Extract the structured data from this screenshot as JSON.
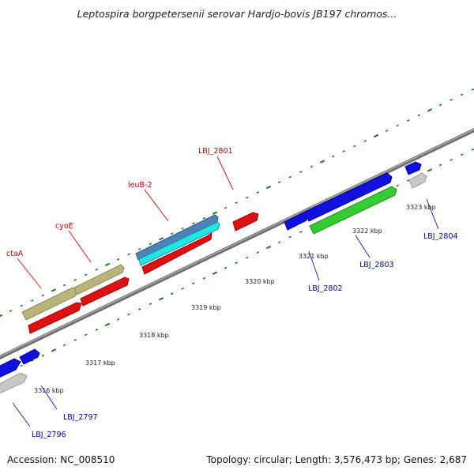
{
  "title": "Leptospira borgpetersenii serovar Hardjo-bovis JB197 chromos...",
  "footer": {
    "accession": "Accession: NC_008510",
    "summary": "Topology: circular; Length: 3,576,473 bp; Genes: 2,687"
  },
  "colors": {
    "backbone": "#8a8a8a",
    "tick": "#1a7a1a",
    "forward_label": "#cc0000",
    "reverse_label": "#0000aa"
  },
  "scale_labels": [
    "3316 kbp",
    "3317 kbp",
    "3318 kbp",
    "3319 kbp",
    "3320 kbp",
    "3321 kbp",
    "3322 kbp",
    "3323 kbp"
  ],
  "labels": {
    "ctaA": "ctaA",
    "cyoE": "cyoE",
    "leuB2": "leuB-2",
    "lbj2801": "LBJ_2801",
    "lbj2796": "LBJ_2796",
    "lbj2797": "LBJ_2797",
    "lbj2802": "LBJ_2802",
    "lbj2803": "LBJ_2803",
    "lbj2804": "LBJ_2804"
  }
}
